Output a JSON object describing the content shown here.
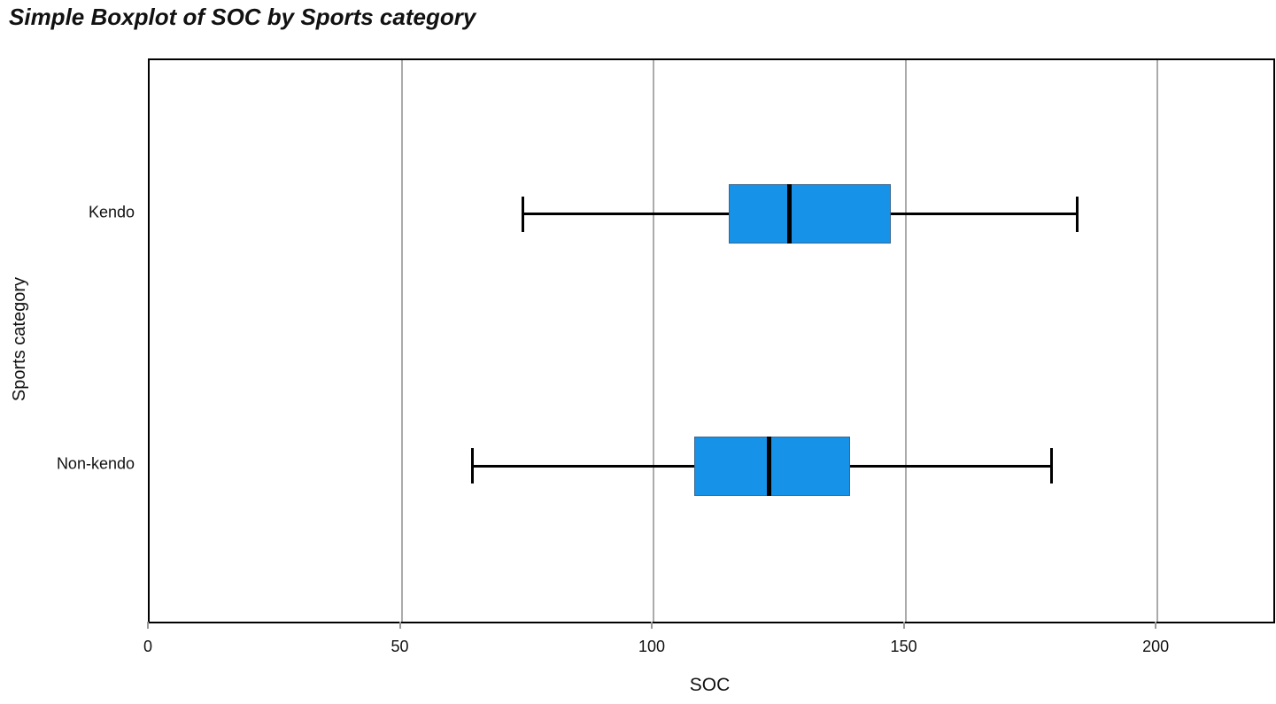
{
  "title": "Simple Boxplot of SOC by Sports category",
  "chart_data": {
    "type": "boxplot",
    "orientation": "horizontal",
    "title": "Simple Boxplot of SOC by Sports category",
    "xlabel": "SOC",
    "ylabel": "Sports category",
    "xlim": [
      0,
      223
    ],
    "xticks": [
      0,
      50,
      100,
      150,
      200
    ],
    "grid": "vertical-gridlines-at-ticks",
    "legend": "none",
    "categories": [
      "Kendo",
      "Non-kendo"
    ],
    "series": [
      {
        "category": "Kendo",
        "whisker_low": 74,
        "q1": 115,
        "median": 127,
        "q3": 147,
        "whisker_high": 184
      },
      {
        "category": "Non-kendo",
        "whisker_low": 64,
        "q1": 108,
        "median": 123,
        "q3": 139,
        "whisker_high": 179
      }
    ],
    "row_center_fractions": [
      0.274,
      0.723
    ],
    "colors": {
      "box_fill": "#1692e8",
      "box_border": "#38678f",
      "median": "#000000",
      "whisker": "#000000",
      "gridline": "#ababab",
      "tick": "#999999",
      "plot_border": "#000000",
      "text": "#111111"
    }
  }
}
